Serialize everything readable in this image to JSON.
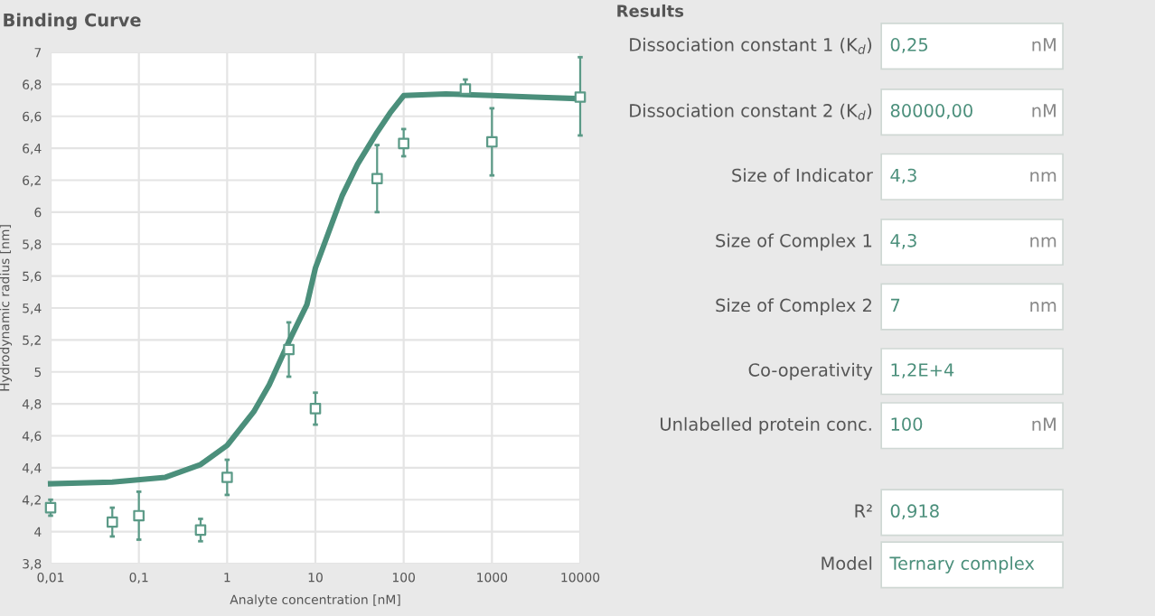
{
  "chart_data": [
    {
      "type": "scatter",
      "title": "Binding Curve",
      "xlabel": "Analyte concentration [nM]",
      "ylabel": "Hydrodynamic radius [nm]",
      "log": "x",
      "grid": true,
      "legend": false,
      "xlim": [
        0.01,
        10000
      ],
      "xticks": [
        {
          "value": 0.01,
          "label": "0,01"
        },
        {
          "value": 0.1,
          "label": "0,1"
        },
        1,
        10,
        100,
        1000,
        10000
      ],
      "ylim": [
        3.8,
        7
      ],
      "yticks": [
        {
          "value": 3.8,
          "label": "3,8"
        },
        4,
        {
          "value": 4.2,
          "label": "4,2"
        },
        {
          "value": 4.4,
          "label": "4,4"
        },
        {
          "value": 4.6,
          "label": "4,6"
        },
        {
          "value": 4.8,
          "label": "4,8"
        },
        5,
        {
          "value": 5.2,
          "label": "5,2"
        },
        {
          "value": 5.4,
          "label": "5,4"
        },
        {
          "value": 5.6,
          "label": "5,6"
        },
        {
          "value": 5.8,
          "label": "5,8"
        },
        6,
        {
          "value": 6.2,
          "label": "6,2"
        },
        {
          "value": 6.4,
          "label": "6,4"
        },
        {
          "value": 6.6,
          "label": "6,6"
        },
        {
          "value": 6.8,
          "label": "6,8"
        },
        7
      ],
      "series": [
        {
          "type": "line",
          "color": "#4b8f7b",
          "marker": "none",
          "line_style": "solid",
          "x": [
            0.01,
            0.05,
            0.2,
            0.5,
            1,
            2,
            3,
            5,
            8,
            10,
            20,
            30,
            50,
            70,
            100,
            300,
            1000,
            3000,
            10000
          ],
          "values": [
            4.3,
            4.31,
            4.34,
            4.42,
            4.54,
            4.75,
            4.92,
            5.19,
            5.42,
            5.65,
            6.1,
            6.3,
            6.5,
            6.62,
            6.73,
            6.74,
            6.73,
            6.72,
            6.71
          ]
        },
        {
          "type": "scatter",
          "color": "#5b9a87",
          "marker": "square",
          "x": [
            0.01,
            0.05,
            0.1,
            0.5,
            1,
            5,
            10,
            50,
            100,
            500,
            1000,
            10000
          ],
          "values": [
            4.15,
            4.06,
            4.1,
            4.01,
            4.34,
            5.14,
            4.77,
            6.21,
            6.43,
            6.77,
            6.44,
            6.72
          ],
          "errors": [
            [
              4.1,
              4.2
            ],
            [
              3.97,
              4.15
            ],
            [
              3.95,
              4.25
            ],
            [
              3.94,
              4.08
            ],
            [
              4.23,
              4.45
            ],
            [
              4.97,
              5.31
            ],
            [
              4.67,
              4.87
            ],
            [
              6.0,
              6.42
            ],
            [
              6.35,
              6.52
            ],
            [
              6.73,
              6.83
            ],
            [
              6.23,
              6.65
            ],
            [
              6.48,
              6.97
            ]
          ]
        }
      ]
    },
    {
      "type": "other",
      "title": "Results",
      "y_categories": [
        "Dissociation constant 1 (K$_{d}$)",
        "Dissociation constant 2 (K$_{d}$)",
        "Size of Indicator",
        "Size of Complex 1",
        "Size of Complex 2",
        "Co-operativity",
        "Unlabelled protein conc.",
        "R²",
        "Model"
      ],
      "cell_labels": [
        [
          "0,25",
          "nM"
        ],
        [
          "80000,00",
          "nM"
        ],
        [
          "4,3",
          "nm"
        ],
        [
          "4,3",
          "nm"
        ],
        [
          "7",
          "nm"
        ],
        [
          "1,2E+4",
          null
        ],
        [
          "100",
          "nM"
        ],
        [
          "0,918",
          null
        ],
        [
          "Ternary complex",
          null
        ]
      ]
    }
  ]
}
